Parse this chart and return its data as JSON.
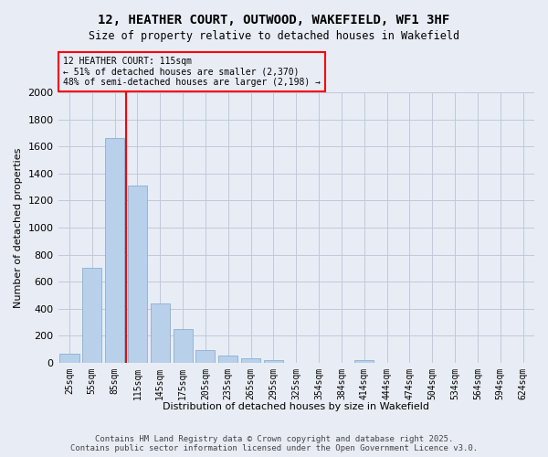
{
  "title_line1": "12, HEATHER COURT, OUTWOOD, WAKEFIELD, WF1 3HF",
  "title_line2": "Size of property relative to detached houses in Wakefield",
  "xlabel": "Distribution of detached houses by size in Wakefield",
  "ylabel": "Number of detached properties",
  "categories": [
    "25sqm",
    "55sqm",
    "85sqm",
    "115sqm",
    "145sqm",
    "175sqm",
    "205sqm",
    "235sqm",
    "265sqm",
    "295sqm",
    "325sqm",
    "354sqm",
    "384sqm",
    "414sqm",
    "444sqm",
    "474sqm",
    "504sqm",
    "534sqm",
    "564sqm",
    "594sqm",
    "624sqm"
  ],
  "values": [
    70,
    700,
    1660,
    1310,
    440,
    250,
    95,
    55,
    35,
    20,
    0,
    0,
    0,
    20,
    0,
    0,
    0,
    0,
    0,
    0,
    0
  ],
  "bar_color": "#b8d0ea",
  "bar_edge_color": "#8aafd0",
  "vline_color": "red",
  "vline_pos": 2.5,
  "annotation_text": "12 HEATHER COURT: 115sqm\n← 51% of detached houses are smaller (2,370)\n48% of semi-detached houses are larger (2,198) →",
  "ylim_max": 2000,
  "yticks": [
    0,
    200,
    400,
    600,
    800,
    1000,
    1200,
    1400,
    1600,
    1800,
    2000
  ],
  "grid_color": "#c0c8da",
  "bg_color": "#e8edf5",
  "footnote": "Contains HM Land Registry data © Crown copyright and database right 2025.\nContains public sector information licensed under the Open Government Licence v3.0."
}
